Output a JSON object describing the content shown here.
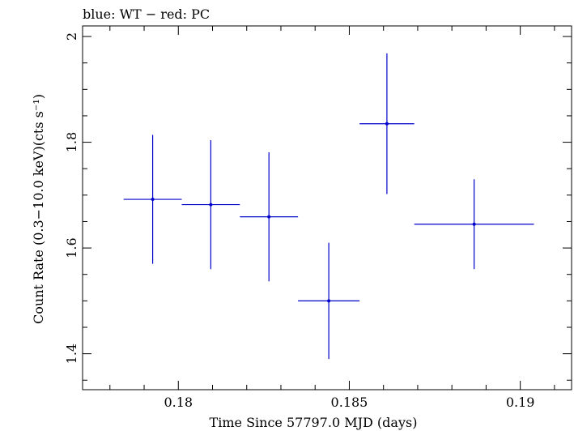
{
  "chart_data": {
    "type": "scatter",
    "title": "blue: WT − red: PC",
    "xlabel": "Time Since 57797.0 MJD (days)",
    "ylabel": "Count Rate (0.3−10.0 keV)(cts s⁻¹)",
    "xlim": [
      0.1772,
      0.1915
    ],
    "ylim": [
      1.332,
      2.02
    ],
    "xticks": [
      0.18,
      0.185,
      0.19
    ],
    "xtick_labels": [
      "0.18",
      "0.185",
      "0.19"
    ],
    "yticks": [
      1.4,
      1.6,
      1.8,
      2.0
    ],
    "ytick_labels": [
      "1.4",
      "1.6",
      "1.8",
      "2"
    ],
    "series": [
      {
        "name": "WT",
        "color": "#0000cc",
        "points": [
          {
            "x": 0.17925,
            "xerr": 0.00085,
            "y": 1.692,
            "yerr": 0.122
          },
          {
            "x": 0.18095,
            "xerr": 0.00085,
            "y": 1.682,
            "yerr": 0.122
          },
          {
            "x": 0.18265,
            "xerr": 0.00085,
            "y": 1.659,
            "yerr": 0.122
          },
          {
            "x": 0.1844,
            "xerr": 0.0009,
            "y": 1.5,
            "yerr": 0.11
          },
          {
            "x": 0.1861,
            "xerr": 0.0008,
            "y": 1.835,
            "yerr": 0.133
          },
          {
            "x": 0.18865,
            "xerr": 0.00175,
            "y": 1.645,
            "yerr": 0.085
          }
        ]
      }
    ]
  }
}
